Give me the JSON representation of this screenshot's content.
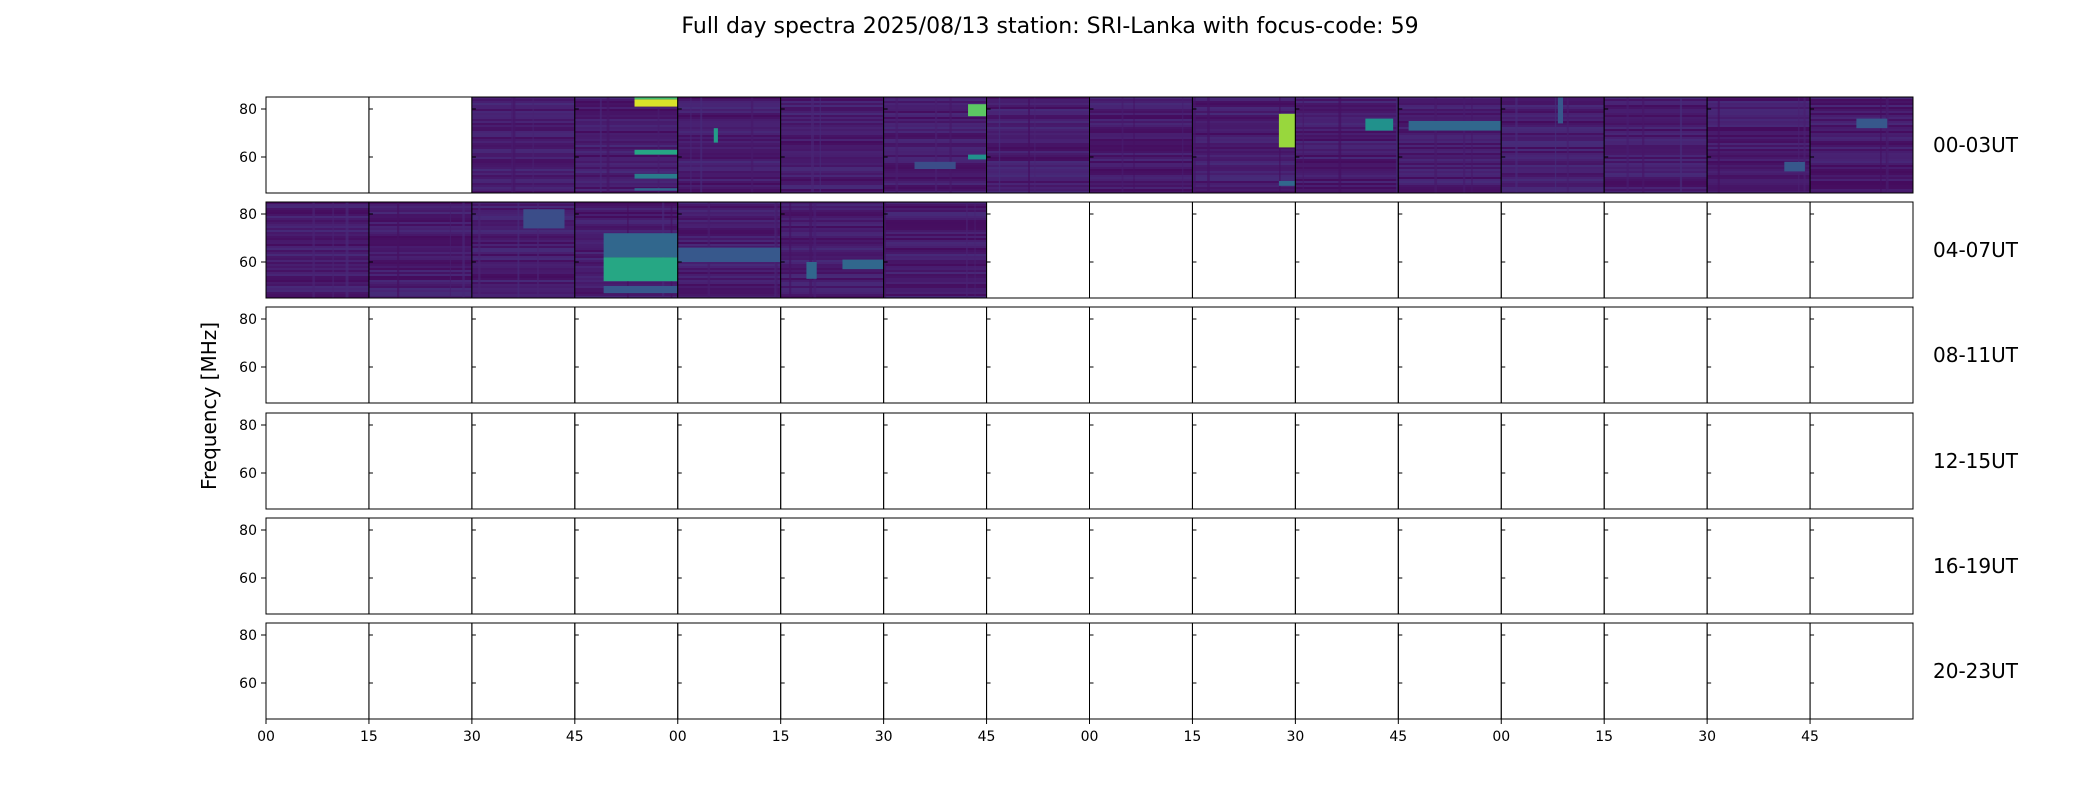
{
  "chart_data": {
    "type": "heatmap",
    "title": "Full day spectra 2025/08/13 station: SRI-Lanka with focus-code: 59",
    "ylabel": "Frequency [MHz]",
    "xlabel": "",
    "ylim": [
      45,
      85
    ],
    "y_ticks": [
      "60",
      "80"
    ],
    "x_tick_labels": [
      "00",
      "15",
      "30",
      "45",
      "00",
      "15",
      "30",
      "45",
      "00",
      "15",
      "30",
      "45",
      "00",
      "15",
      "30",
      "45"
    ],
    "colormap": "viridis",
    "rows": [
      {
        "label": "00-03UT",
        "panels": [
          {
            "data": false
          },
          {
            "data": false
          },
          {
            "data": true,
            "features": []
          },
          {
            "data": true,
            "features": [
              {
                "freq": [
                  81,
                  84
                ],
                "time": [
                  0.58,
                  1.0
                ],
                "level": 0.95
              },
              {
                "freq": [
                  84,
                  85
                ],
                "time": [
                  0.58,
                  1.0
                ],
                "level": 0.7
              },
              {
                "freq": [
                  61,
                  63
                ],
                "time": [
                  0.58,
                  1.0
                ],
                "level": 0.6
              },
              {
                "freq": [
                  51,
                  53
                ],
                "time": [
                  0.58,
                  1.0
                ],
                "level": 0.45
              },
              {
                "freq": [
                  46,
                  47
                ],
                "time": [
                  0.58,
                  1.0
                ],
                "level": 0.4
              }
            ]
          },
          {
            "data": true,
            "features": [
              {
                "freq": [
                  66,
                  72
                ],
                "time": [
                  0.35,
                  0.39
                ],
                "level": 0.55
              }
            ]
          },
          {
            "data": true,
            "features": []
          },
          {
            "data": true,
            "features": [
              {
                "freq": [
                  77,
                  82
                ],
                "time": [
                  0.82,
                  1.0
                ],
                "level": 0.75
              },
              {
                "freq": [
                  59,
                  61
                ],
                "time": [
                  0.82,
                  1.0
                ],
                "level": 0.5
              },
              {
                "freq": [
                  55,
                  58
                ],
                "time": [
                  0.3,
                  0.7
                ],
                "level": 0.3
              }
            ]
          },
          {
            "data": true,
            "features": []
          },
          {
            "data": true,
            "features": []
          },
          {
            "data": true,
            "features": [
              {
                "freq": [
                  64,
                  78
                ],
                "time": [
                  0.84,
                  1.0
                ],
                "level": 0.85
              },
              {
                "freq": [
                  48,
                  50
                ],
                "time": [
                  0.84,
                  1.0
                ],
                "level": 0.4
              }
            ]
          },
          {
            "data": true,
            "features": [
              {
                "freq": [
                  71,
                  76
                ],
                "time": [
                  0.68,
                  0.95
                ],
                "level": 0.5
              }
            ]
          },
          {
            "data": true,
            "features": [
              {
                "freq": [
                  71,
                  75
                ],
                "time": [
                  0.1,
                  1.0
                ],
                "level": 0.4
              }
            ]
          },
          {
            "data": true,
            "features": [
              {
                "freq": [
                  74,
                  85
                ],
                "time": [
                  0.55,
                  0.6
                ],
                "level": 0.35
              }
            ]
          },
          {
            "data": true,
            "features": []
          },
          {
            "data": true,
            "features": [
              {
                "freq": [
                  54,
                  58
                ],
                "time": [
                  0.75,
                  0.95
                ],
                "level": 0.35
              }
            ]
          },
          {
            "data": true,
            "features": [
              {
                "freq": [
                  72,
                  76
                ],
                "time": [
                  0.45,
                  0.75
                ],
                "level": 0.35
              }
            ]
          }
        ]
      },
      {
        "label": "04-07UT",
        "panels": [
          {
            "data": true,
            "features": []
          },
          {
            "data": true,
            "features": []
          },
          {
            "data": true,
            "features": [
              {
                "freq": [
                  74,
                  82
                ],
                "time": [
                  0.5,
                  0.9
                ],
                "level": 0.3
              }
            ]
          },
          {
            "data": true,
            "features": [
              {
                "freq": [
                  52,
                  62
                ],
                "time": [
                  0.28,
                  1.0
                ],
                "level": 0.6
              },
              {
                "freq": [
                  62,
                  72
                ],
                "time": [
                  0.28,
                  1.0
                ],
                "level": 0.4
              },
              {
                "freq": [
                  47,
                  50
                ],
                "time": [
                  0.28,
                  1.0
                ],
                "level": 0.35
              }
            ]
          },
          {
            "data": true,
            "features": [
              {
                "freq": [
                  60,
                  66
                ],
                "time": [
                  0.0,
                  1.0
                ],
                "level": 0.35
              }
            ]
          },
          {
            "data": true,
            "features": [
              {
                "freq": [
                  53,
                  60
                ],
                "time": [
                  0.25,
                  0.35
                ],
                "level": 0.4
              },
              {
                "freq": [
                  57,
                  61
                ],
                "time": [
                  0.6,
                  1.0
                ],
                "level": 0.4
              }
            ]
          },
          {
            "data": true,
            "features": []
          },
          {
            "data": false
          },
          {
            "data": false
          },
          {
            "data": false
          },
          {
            "data": false
          },
          {
            "data": false
          },
          {
            "data": false
          },
          {
            "data": false
          },
          {
            "data": false
          },
          {
            "data": false
          }
        ]
      },
      {
        "label": "08-11UT",
        "panels": [
          {
            "data": false
          },
          {
            "data": false
          },
          {
            "data": false
          },
          {
            "data": false
          },
          {
            "data": false
          },
          {
            "data": false
          },
          {
            "data": false
          },
          {
            "data": false
          },
          {
            "data": false
          },
          {
            "data": false
          },
          {
            "data": false
          },
          {
            "data": false
          },
          {
            "data": false
          },
          {
            "data": false
          },
          {
            "data": false
          },
          {
            "data": false
          }
        ]
      },
      {
        "label": "12-15UT",
        "panels": [
          {
            "data": false
          },
          {
            "data": false
          },
          {
            "data": false
          },
          {
            "data": false
          },
          {
            "data": false
          },
          {
            "data": false
          },
          {
            "data": false
          },
          {
            "data": false
          },
          {
            "data": false
          },
          {
            "data": false
          },
          {
            "data": false
          },
          {
            "data": false
          },
          {
            "data": false
          },
          {
            "data": false
          },
          {
            "data": false
          },
          {
            "data": false
          }
        ]
      },
      {
        "label": "16-19UT",
        "panels": [
          {
            "data": false
          },
          {
            "data": false
          },
          {
            "data": false
          },
          {
            "data": false
          },
          {
            "data": false
          },
          {
            "data": false
          },
          {
            "data": false
          },
          {
            "data": false
          },
          {
            "data": false
          },
          {
            "data": false
          },
          {
            "data": false
          },
          {
            "data": false
          },
          {
            "data": false
          },
          {
            "data": false
          },
          {
            "data": false
          },
          {
            "data": false
          }
        ]
      },
      {
        "label": "20-23UT",
        "panels": [
          {
            "data": false
          },
          {
            "data": false
          },
          {
            "data": false
          },
          {
            "data": false
          },
          {
            "data": false
          },
          {
            "data": false
          },
          {
            "data": false
          },
          {
            "data": false
          },
          {
            "data": false
          },
          {
            "data": false
          },
          {
            "data": false
          },
          {
            "data": false
          },
          {
            "data": false
          },
          {
            "data": false
          },
          {
            "data": false
          },
          {
            "data": false
          }
        ]
      }
    ]
  }
}
